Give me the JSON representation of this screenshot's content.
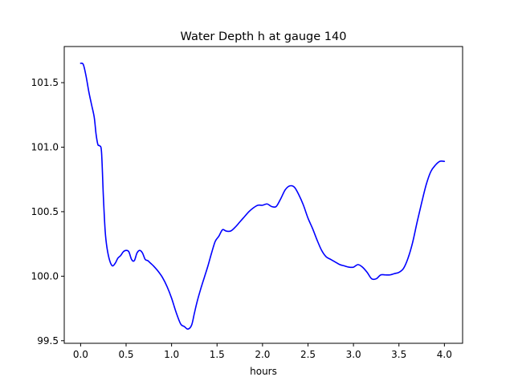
{
  "chart_data": {
    "type": "line",
    "title": "Water Depth h at gauge 140",
    "xlabel": "hours",
    "ylabel": "",
    "xlim": [
      -0.18,
      4.2
    ],
    "ylim": [
      99.48,
      101.78
    ],
    "xticks": [
      0.0,
      0.5,
      1.0,
      1.5,
      2.0,
      2.5,
      3.0,
      3.5,
      4.0
    ],
    "xtick_labels": [
      "0.0",
      "0.5",
      "1.0",
      "1.5",
      "2.0",
      "2.5",
      "3.0",
      "3.5",
      "4.0"
    ],
    "yticks": [
      99.5,
      100.0,
      100.5,
      101.0,
      101.5
    ],
    "ytick_labels": [
      "99.5",
      "100.0",
      "100.5",
      "101.0",
      "101.5"
    ],
    "grid": false,
    "series": [
      {
        "color": "#0000ff",
        "x": [
          0.0,
          0.03,
          0.06,
          0.09,
          0.12,
          0.15,
          0.17,
          0.19,
          0.21,
          0.23,
          0.25,
          0.27,
          0.29,
          0.32,
          0.35,
          0.38,
          0.41,
          0.44,
          0.47,
          0.5,
          0.53,
          0.56,
          0.59,
          0.62,
          0.65,
          0.68,
          0.71,
          0.74,
          0.77,
          0.8,
          0.85,
          0.9,
          0.95,
          1.0,
          1.05,
          1.1,
          1.14,
          1.18,
          1.22,
          1.25,
          1.28,
          1.32,
          1.36,
          1.4,
          1.44,
          1.48,
          1.52,
          1.56,
          1.6,
          1.65,
          1.7,
          1.75,
          1.8,
          1.85,
          1.9,
          1.95,
          2.0,
          2.05,
          2.1,
          2.15,
          2.2,
          2.25,
          2.3,
          2.35,
          2.4,
          2.45,
          2.5,
          2.55,
          2.6,
          2.65,
          2.7,
          2.75,
          2.8,
          2.85,
          2.9,
          2.95,
          3.0,
          3.05,
          3.1,
          3.15,
          3.2,
          3.25,
          3.3,
          3.35,
          3.4,
          3.45,
          3.5,
          3.55,
          3.6,
          3.65,
          3.7,
          3.75,
          3.8,
          3.85,
          3.9,
          3.95,
          4.0
        ],
        "y": [
          101.65,
          101.64,
          101.55,
          101.43,
          101.33,
          101.23,
          101.1,
          101.02,
          101.01,
          100.96,
          100.62,
          100.35,
          100.22,
          100.12,
          100.08,
          100.1,
          100.14,
          100.16,
          100.19,
          100.2,
          100.19,
          100.13,
          100.12,
          100.18,
          100.2,
          100.18,
          100.13,
          100.12,
          100.1,
          100.08,
          100.04,
          99.99,
          99.92,
          99.83,
          99.72,
          99.63,
          99.61,
          99.59,
          99.62,
          99.71,
          99.8,
          99.9,
          99.99,
          100.08,
          100.18,
          100.27,
          100.31,
          100.36,
          100.35,
          100.35,
          100.38,
          100.42,
          100.46,
          100.5,
          100.53,
          100.55,
          100.55,
          100.56,
          100.54,
          100.54,
          100.6,
          100.67,
          100.7,
          100.69,
          100.63,
          100.55,
          100.45,
          100.37,
          100.28,
          100.2,
          100.15,
          100.13,
          100.11,
          100.09,
          100.08,
          100.07,
          100.07,
          100.09,
          100.07,
          100.03,
          99.98,
          99.98,
          100.01,
          100.01,
          100.01,
          100.02,
          100.03,
          100.06,
          100.14,
          100.26,
          100.42,
          100.57,
          100.71,
          100.81,
          100.86,
          100.89,
          100.89
        ]
      }
    ]
  }
}
